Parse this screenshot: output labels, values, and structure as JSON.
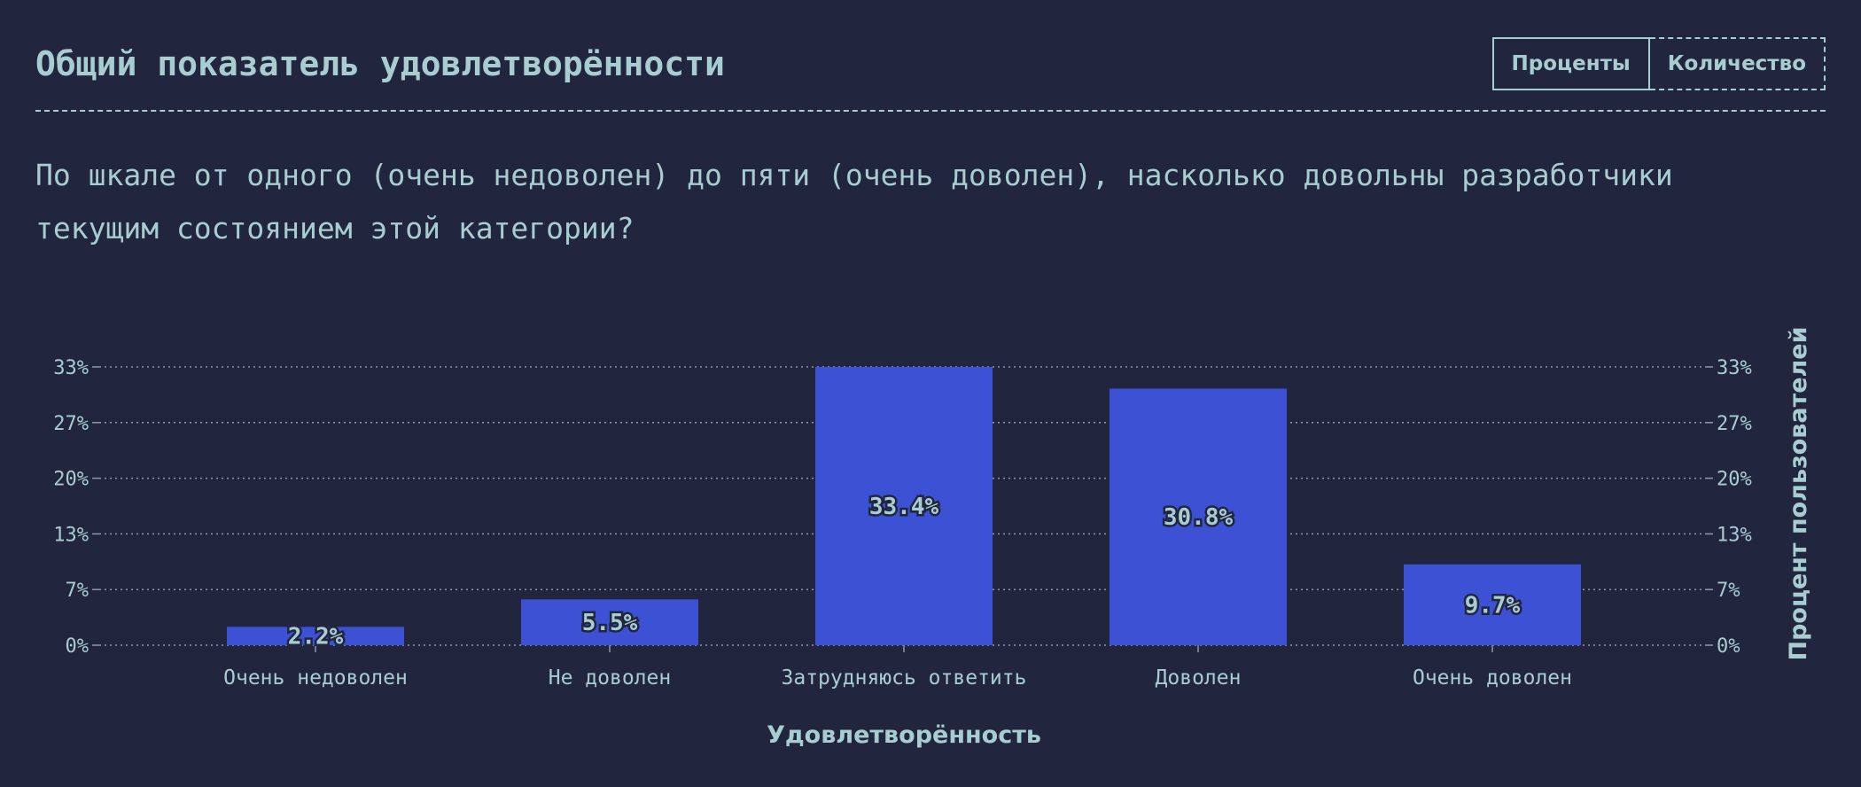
{
  "header": {
    "title": "Общий показатель удовлетворённости",
    "toggle": {
      "percent_label": "Проценты",
      "count_label": "Количество",
      "selected": "percent"
    }
  },
  "question": "По шкале от одного (очень недоволен) до пяти (очень доволен), насколько довольны разработчики текущим состоянием этой категории?",
  "colors": {
    "background": "#21263e",
    "text": "#a8cdd0",
    "bar": "#3d51d4",
    "grid": "#8c9aa6"
  },
  "chart_data": {
    "type": "bar",
    "categories": [
      "Очень недоволен",
      "Не доволен",
      "Затрудняюсь ответить",
      "Доволен",
      "Очень доволен"
    ],
    "values": [
      2.2,
      5.5,
      33.4,
      30.8,
      9.7
    ],
    "value_labels": [
      "2.2%",
      "5.5%",
      "33.4%",
      "30.8%",
      "9.7%"
    ],
    "xlabel": "Удовлетворённость",
    "ylabel": "Процент пользователей",
    "ylim": [
      0,
      33.4
    ],
    "yticks": [
      0,
      6.68,
      13.36,
      20.04,
      26.72,
      33.4
    ],
    "ytick_labels": [
      "0%",
      "7%",
      "13%",
      "20%",
      "27%",
      "33%"
    ],
    "grid": true,
    "legend": "none"
  }
}
